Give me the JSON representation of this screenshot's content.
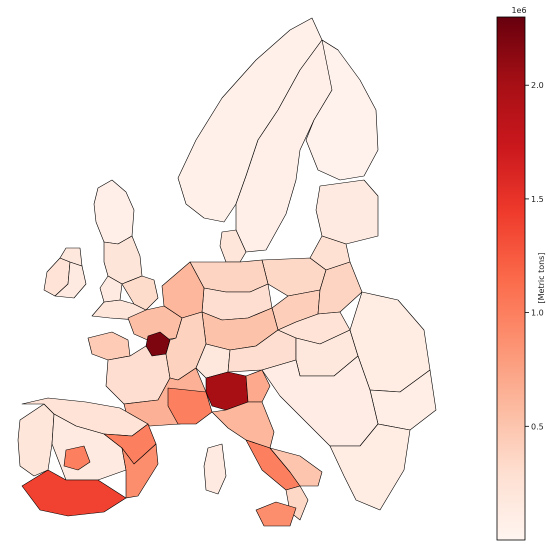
{
  "map": {
    "coastline_color": "#000000",
    "colormap": "Reds",
    "regions": [
      {
        "id": "ireland-west",
        "value": 250000
      },
      {
        "id": "ireland-east",
        "value": 150000
      },
      {
        "id": "northern-ireland",
        "value": 180000
      },
      {
        "id": "scotland",
        "value": 80000
      },
      {
        "id": "england-north",
        "value": 220000
      },
      {
        "id": "england-south",
        "value": 200000
      },
      {
        "id": "england-east",
        "value": 320000
      },
      {
        "id": "wales",
        "value": 150000
      },
      {
        "id": "norway",
        "value": 60000
      },
      {
        "id": "sweden",
        "value": 80000
      },
      {
        "id": "finland",
        "value": 50000
      },
      {
        "id": "denmark",
        "value": 200000
      },
      {
        "id": "estonia-latvia",
        "value": 150000
      },
      {
        "id": "lithuania",
        "value": 280000
      },
      {
        "id": "poland-north",
        "value": 350000
      },
      {
        "id": "poland-south",
        "value": 420000
      },
      {
        "id": "poland-east",
        "value": 380000
      },
      {
        "id": "germany-north",
        "value": 380000
      },
      {
        "id": "germany-central",
        "value": 300000
      },
      {
        "id": "germany-south",
        "value": 520000
      },
      {
        "id": "netherlands-belgium",
        "value": 600000
      },
      {
        "id": "france-north",
        "value": 550000
      },
      {
        "id": "paris",
        "value": 2200000
      },
      {
        "id": "brittany",
        "value": 450000
      },
      {
        "id": "france-central",
        "value": 300000
      },
      {
        "id": "france-east",
        "value": 400000
      },
      {
        "id": "france-south",
        "value": 650000
      },
      {
        "id": "switzerland",
        "value": 180000
      },
      {
        "id": "austria",
        "value": 300000
      },
      {
        "id": "czechia-slovakia",
        "value": 250000
      },
      {
        "id": "hungary",
        "value": 180000
      },
      {
        "id": "romania",
        "value": 120000
      },
      {
        "id": "bulgaria",
        "value": 100000
      },
      {
        "id": "balkans",
        "value": 110000
      },
      {
        "id": "greece",
        "value": 120000
      },
      {
        "id": "lombardy",
        "value": 2000000
      },
      {
        "id": "piedmont",
        "value": 1000000
      },
      {
        "id": "veneto",
        "value": 700000
      },
      {
        "id": "italy-central",
        "value": 600000
      },
      {
        "id": "lazio-campania",
        "value": 1000000
      },
      {
        "id": "puglia",
        "value": 500000
      },
      {
        "id": "calabria",
        "value": 350000
      },
      {
        "id": "sicily",
        "value": 900000
      },
      {
        "id": "sardinia",
        "value": 150000
      },
      {
        "id": "portugal",
        "value": 200000
      },
      {
        "id": "spain-north",
        "value": 250000
      },
      {
        "id": "spain-central",
        "value": 150000
      },
      {
        "id": "madrid",
        "value": 1000000
      },
      {
        "id": "catalonia",
        "value": 1000000
      },
      {
        "id": "valencia",
        "value": 900000
      },
      {
        "id": "andalusia",
        "value": 1400000
      }
    ]
  },
  "colorbar": {
    "label": "[Metric tons]",
    "exponent": "1e6",
    "min": 0,
    "max": 2300000,
    "ticks": [
      {
        "value": 500000,
        "label": "0.5"
      },
      {
        "value": 1000000,
        "label": "1.0"
      },
      {
        "value": 1500000,
        "label": "1.5"
      },
      {
        "value": 2000000,
        "label": "2.0"
      }
    ]
  }
}
